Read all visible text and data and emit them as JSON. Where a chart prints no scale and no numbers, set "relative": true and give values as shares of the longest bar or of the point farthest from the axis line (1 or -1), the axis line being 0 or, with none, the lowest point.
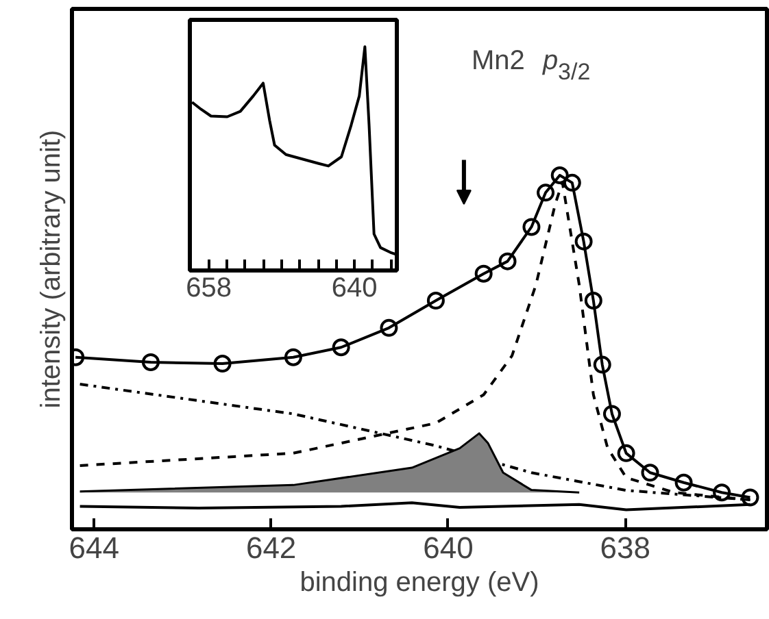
{
  "chart_data": [
    {
      "type": "scatter",
      "xlabel": "binding energy (eV)",
      "ylabel": "intensity (arbitrary unit)",
      "relative": true,
      "xlim": [
        644.25,
        636.4
      ],
      "xticks": [
        644,
        642,
        640,
        638
      ],
      "tick_labels": "x",
      "grid": false,
      "annotations": [
        "Mn2 p$_{3/2}$"
      ],
      "series": [
        {
          "type": "scatter",
          "marker": "circle",
          "color": "#000000",
          "x": [
            644.21,
            643.36,
            642.55,
            641.75,
            641.21,
            640.67,
            640.14,
            639.6,
            639.33,
            639.06,
            638.9,
            638.74,
            638.6,
            638.47,
            638.36,
            638.26,
            638.15,
            637.99,
            637.72,
            637.34,
            636.91,
            636.59
          ],
          "values": [
            0.486,
            0.472,
            0.468,
            0.486,
            0.514,
            0.569,
            0.646,
            0.722,
            0.757,
            0.854,
            0.951,
            1.0,
            0.979,
            0.813,
            0.646,
            0.465,
            0.326,
            0.215,
            0.16,
            0.132,
            0.104,
            0.09
          ]
        },
        {
          "type": "line",
          "line_style": "solid",
          "color": "#000000",
          "x": [
            644.21,
            643.36,
            642.55,
            641.75,
            641.21,
            640.67,
            640.14,
            639.6,
            639.33,
            639.06,
            638.9,
            638.74,
            638.6,
            638.47,
            638.36,
            638.26,
            638.15,
            637.99,
            637.72,
            637.34,
            636.91,
            636.59
          ],
          "values": [
            0.486,
            0.472,
            0.468,
            0.486,
            0.514,
            0.569,
            0.646,
            0.722,
            0.757,
            0.854,
            0.951,
            1.0,
            0.979,
            0.813,
            0.646,
            0.465,
            0.326,
            0.215,
            0.16,
            0.132,
            0.104,
            0.09
          ]
        },
        {
          "type": "line",
          "line_style": "dashed",
          "color": "#000000",
          "x": [
            644.16,
            641.75,
            640.14,
            639.6,
            639.28,
            639.01,
            638.79,
            638.71,
            638.52,
            638.36,
            638.2,
            637.99,
            637.45,
            636.59
          ],
          "values": [
            0.18,
            0.215,
            0.3,
            0.38,
            0.49,
            0.69,
            0.92,
            0.98,
            0.69,
            0.38,
            0.23,
            0.146,
            0.104,
            0.083
          ]
        },
        {
          "type": "line",
          "line_style": "dashdot",
          "color": "#000000",
          "x": [
            644.16,
            641.75,
            640.14,
            639.06,
            637.99,
            636.59
          ],
          "values": [
            0.41,
            0.326,
            0.236,
            0.16,
            0.11,
            0.083
          ]
        },
        {
          "type": "area",
          "color": "#808080",
          "x": [
            644.16,
            641.75,
            640.41,
            639.87,
            639.65,
            639.55,
            639.38,
            639.06,
            638.52
          ],
          "values": [
            0.107,
            0.125,
            0.174,
            0.229,
            0.271,
            0.243,
            0.16,
            0.111,
            0.104
          ]
        },
        {
          "type": "line",
          "line_style": "solid",
          "color": "#000000",
          "x": [
            644.16,
            642.82,
            641.21,
            640.41,
            639.87,
            638.52,
            637.99,
            636.59
          ],
          "values": [
            0.065,
            0.06,
            0.065,
            0.075,
            0.062,
            0.07,
            0.055,
            0.07
          ]
        }
      ]
    },
    {
      "type": "line",
      "relative": true,
      "xlim": [
        660.34,
        634.76
      ],
      "xticks": [
        658,
        {
          "value": 655.75,
          "label": null
        },
        {
          "value": 653.5,
          "label": null
        },
        {
          "value": 651.25,
          "label": null
        },
        {
          "value": 649,
          "label": null
        },
        {
          "value": 646.75,
          "label": null
        },
        {
          "value": 644.5,
          "label": null
        },
        {
          "value": 642.25,
          "label": null
        },
        640,
        {
          "value": 637.75,
          "label": null
        },
        {
          "value": 635.5,
          "label": null
        }
      ],
      "tick_labels": "x",
      "grid": false,
      "series": [
        {
          "color": "#000000",
          "line_style": "solid",
          "x": [
            660.07,
            658.94,
            657.73,
            655.72,
            654.1,
            652.5,
            651.28,
            650.48,
            649.87,
            648.46,
            646.45,
            644.43,
            643.22,
            641.61,
            640.4,
            639.4,
            638.71,
            638.19,
            637.58,
            636.78,
            635.57,
            634.76
          ],
          "values": [
            0.752,
            0.72,
            0.69,
            0.687,
            0.711,
            0.78,
            0.837,
            0.67,
            0.56,
            0.518,
            0.498,
            0.478,
            0.467,
            0.508,
            0.65,
            0.78,
            1.0,
            0.65,
            0.163,
            0.102,
            0.081,
            0.071
          ]
        }
      ]
    }
  ]
}
